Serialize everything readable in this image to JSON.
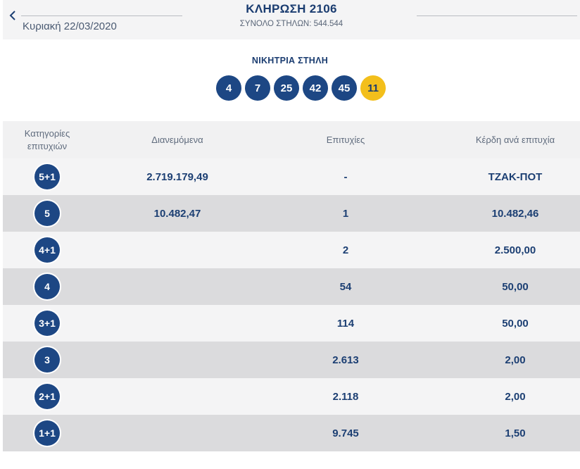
{
  "header": {
    "title": "ΚΛΗΡΩΣΗ 2106",
    "date": "Κυριακή 22/03/2020",
    "total_columns": "ΣΥΝΟΛΟ ΣΤΗΛΩΝ: 544.544"
  },
  "winning": {
    "label": "ΝΙΚΗΤΡΙΑ ΣΤΗΛΗ",
    "numbers": [
      "4",
      "7",
      "25",
      "42",
      "45"
    ],
    "joker": "11"
  },
  "table": {
    "headers": {
      "category": "Κατηγορίες επιτυχιών",
      "distributed": "Διανεμόμενα",
      "winners": "Επιτυχίες",
      "prize": "Κέρδη ανά επιτυχία"
    },
    "rows": [
      {
        "category": "5+1",
        "distributed": "2.719.179,49",
        "winners": "-",
        "prize": "ΤΖΑΚ-ΠΟΤ"
      },
      {
        "category": "5",
        "distributed": "10.482,47",
        "winners": "1",
        "prize": "10.482,46"
      },
      {
        "category": "4+1",
        "distributed": "",
        "winners": "2",
        "prize": "2.500,00"
      },
      {
        "category": "4",
        "distributed": "",
        "winners": "54",
        "prize": "50,00"
      },
      {
        "category": "3+1",
        "distributed": "",
        "winners": "114",
        "prize": "50,00"
      },
      {
        "category": "3",
        "distributed": "",
        "winners": "2.613",
        "prize": "2,00"
      },
      {
        "category": "2+1",
        "distributed": "",
        "winners": "2.118",
        "prize": "2,00"
      },
      {
        "category": "1+1",
        "distributed": "",
        "winners": "9.745",
        "prize": "1,50"
      }
    ]
  },
  "colors": {
    "ball": "#1d4784",
    "joker_ball": "#f3bf1b",
    "text_primary": "#1c3f73",
    "row_light": "#f4f4f5",
    "row_dark": "#dbdbdd"
  },
  "icons": {
    "back": "chevron-left-icon"
  }
}
